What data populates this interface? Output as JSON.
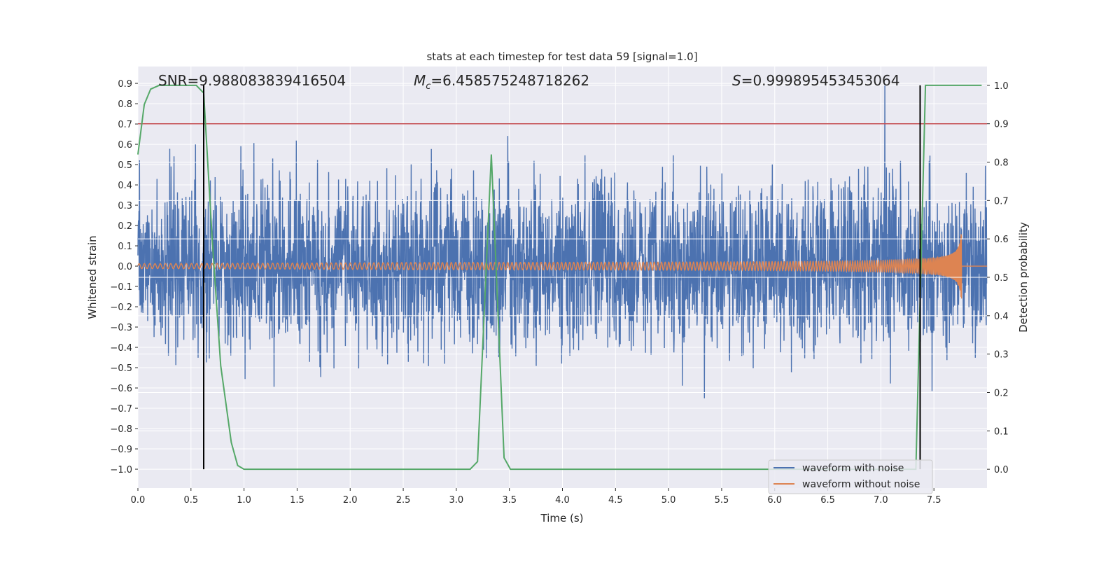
{
  "chart_data": {
    "type": "line",
    "title": "stats at each timestep for test data 59 [signal=1.0]",
    "xlabel": "Time (s)",
    "ylabel": "Whitened strain",
    "ylabel_right": "Detection probability",
    "xlim": [
      0,
      8
    ],
    "ylim": [
      -1.093,
      0.983
    ],
    "ylim_right": [
      -0.049,
      1.049
    ],
    "grid": true,
    "x_ticks": [
      "0.0",
      "0.5",
      "1.0",
      "1.5",
      "2.0",
      "2.5",
      "3.0",
      "3.5",
      "4.0",
      "4.5",
      "5.0",
      "5.5",
      "6.0",
      "6.5",
      "7.0",
      "7.5"
    ],
    "y_ticks": [
      "0.9",
      "0.8",
      "0.7",
      "0.6",
      "0.5",
      "0.4",
      "0.3",
      "0.2",
      "0.1",
      "0.0",
      "−0.1",
      "−0.2",
      "−0.3",
      "−0.4",
      "−0.5",
      "−0.6",
      "−0.7",
      "−0.8",
      "−0.9",
      "−1.0"
    ],
    "y_ticks_right": [
      "1.0",
      "0.9",
      "0.8",
      "0.7",
      "0.6",
      "0.5",
      "0.4",
      "0.3",
      "0.2",
      "0.1",
      "0.0"
    ],
    "annotations": {
      "snr": "SNR=9.988083839416504",
      "mc_symbol": "M",
      "mc_sub": "c",
      "mc_value": "=6.458575248718262",
      "s_symbol": "S",
      "s_value": "=0.999895453453064"
    },
    "legend": {
      "placement": "lower-right",
      "entries": [
        {
          "label": "waveform with noise",
          "color": "#4c72b0"
        },
        {
          "label": "waveform without noise",
          "color": "#dd8452"
        }
      ]
    },
    "series": [
      {
        "name": "waveform with noise",
        "color": "#4c72b0",
        "axis": "left",
        "noise_sigma": 0.2,
        "duration": 8.0
      },
      {
        "name": "waveform without noise",
        "color": "#dd8452",
        "axis": "left",
        "merger_time": 7.76,
        "peak_amplitude": 0.19
      },
      {
        "name": "detection probability",
        "color": "#55a868",
        "axis": "right",
        "x": [
          0.0,
          0.06,
          0.12,
          0.2,
          0.55,
          0.62,
          0.7,
          0.78,
          0.88,
          0.94,
          1.0,
          3.13,
          3.2,
          3.33,
          3.45,
          3.51,
          7.33,
          7.42,
          7.95
        ],
        "y": [
          0.82,
          0.95,
          0.99,
          1.0,
          1.0,
          0.98,
          0.6,
          0.27,
          0.07,
          0.01,
          0.0,
          0.0,
          0.02,
          0.82,
          0.03,
          0.0,
          0.0,
          1.0,
          1.0
        ]
      }
    ],
    "threshold": {
      "axis": "right",
      "value": 0.9,
      "color": "#c44e52"
    },
    "vertical_markers": {
      "x": [
        0.62,
        7.37
      ],
      "y_range": [
        0.0,
        1.0
      ],
      "color": "#000000"
    }
  }
}
